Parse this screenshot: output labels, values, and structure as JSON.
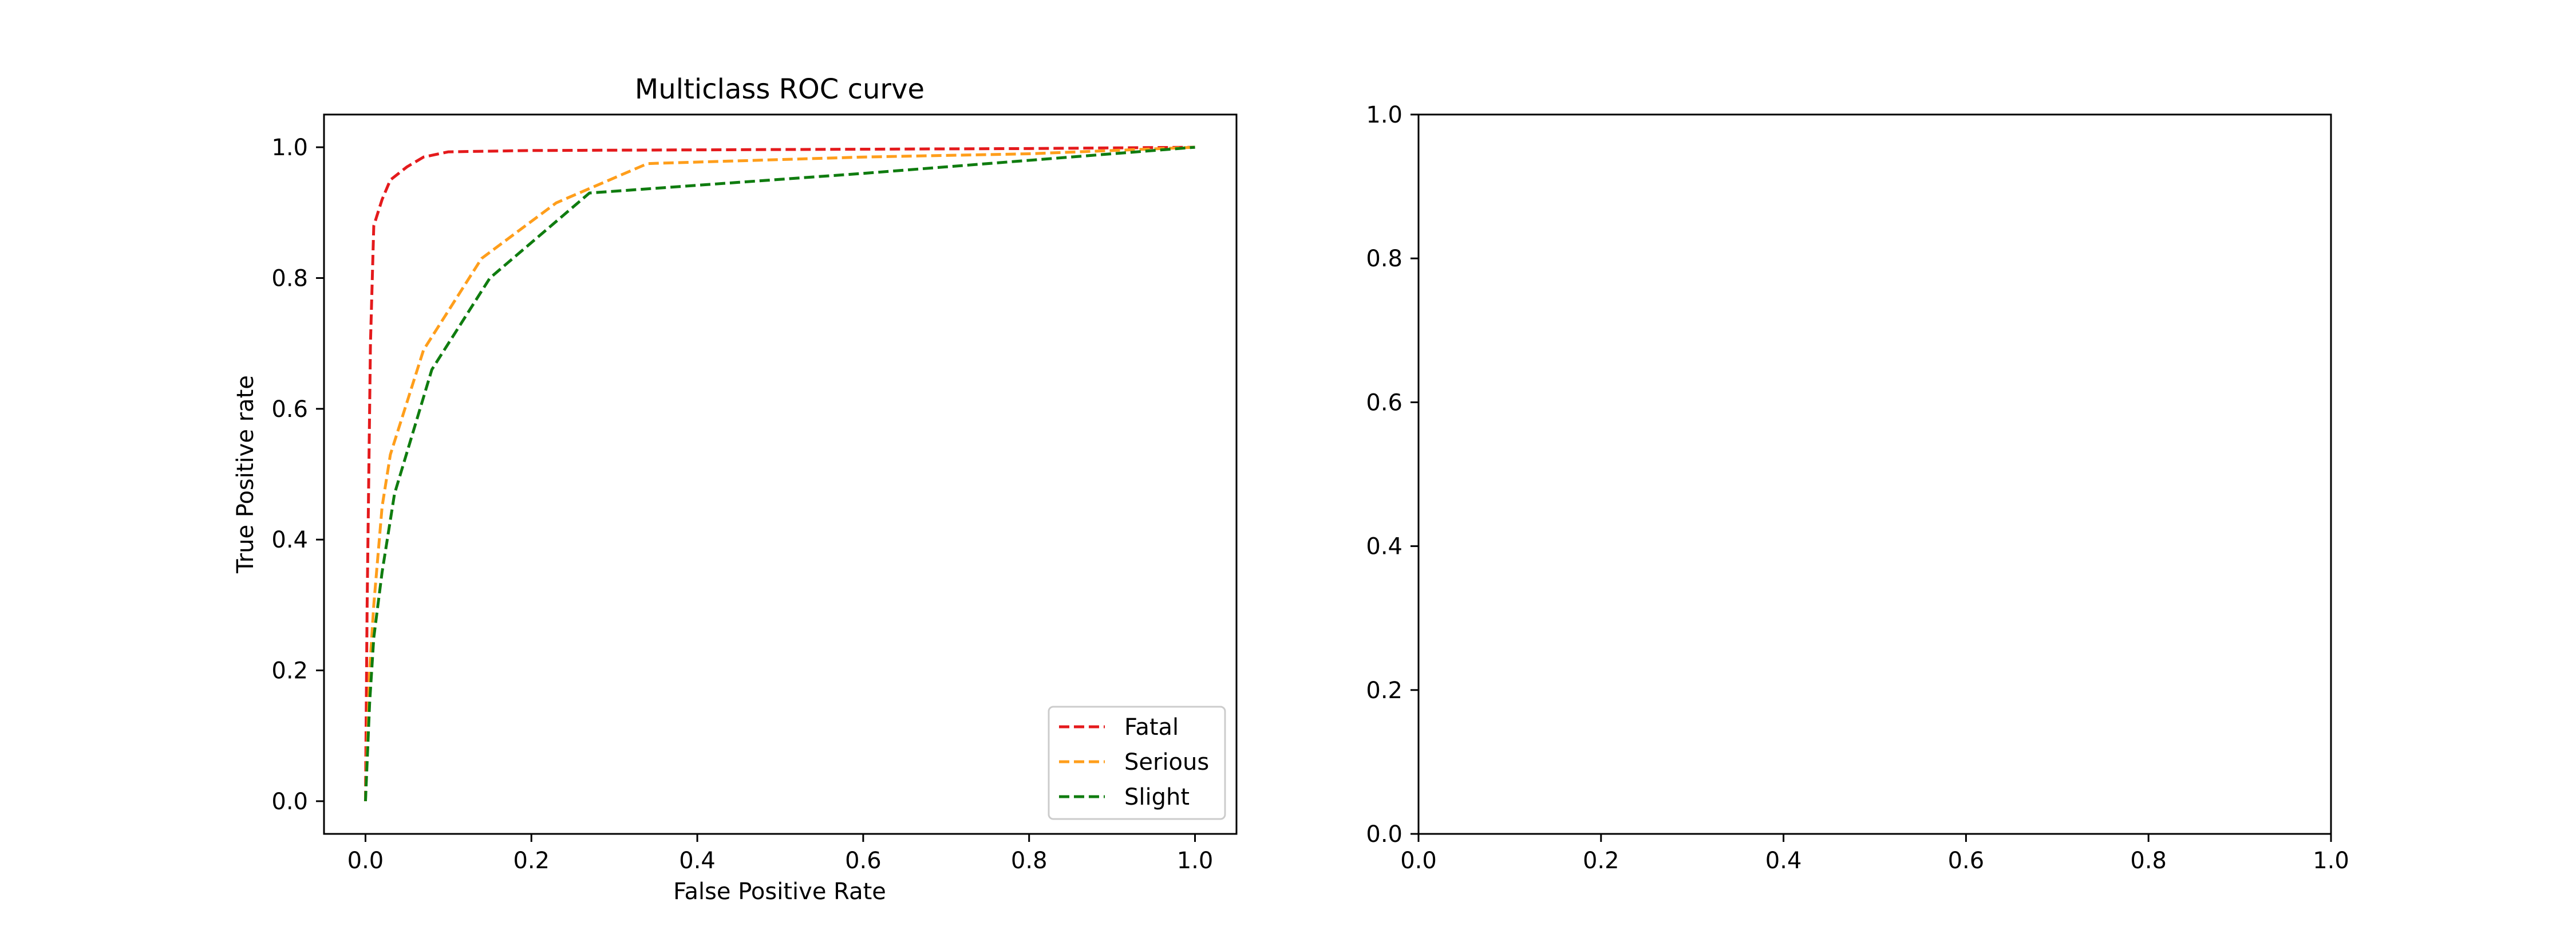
{
  "chart_data": [
    {
      "type": "line",
      "title": "Multiclass ROC curve",
      "xlabel": "False Positive Rate",
      "ylabel": "True Positive rate",
      "xlim": [
        -0.05,
        1.05
      ],
      "ylim": [
        -0.05,
        1.05
      ],
      "xticks": [
        "0.0",
        "0.2",
        "0.4",
        "0.6",
        "0.8",
        "1.0"
      ],
      "yticks": [
        "0.0",
        "0.2",
        "0.4",
        "0.6",
        "0.8",
        "1.0"
      ],
      "grid": false,
      "legend_position": "lower-right",
      "series": [
        {
          "name": "Fatal",
          "color": "#e41a1c",
          "line_style": "dashed",
          "x": [
            0.0,
            0.002,
            0.004,
            0.006,
            0.01,
            0.02,
            0.03,
            0.05,
            0.07,
            0.1,
            0.2,
            0.4,
            0.6,
            0.8,
            1.0
          ],
          "y": [
            0.0,
            0.3,
            0.5,
            0.7,
            0.88,
            0.92,
            0.95,
            0.97,
            0.985,
            0.993,
            0.995,
            0.996,
            0.997,
            0.998,
            1.0
          ]
        },
        {
          "name": "Serious",
          "color": "#ff9e1b",
          "line_style": "dashed",
          "x": [
            0.0,
            0.005,
            0.01,
            0.02,
            0.03,
            0.07,
            0.14,
            0.23,
            0.34,
            0.6,
            0.8,
            1.0
          ],
          "y": [
            0.0,
            0.2,
            0.3,
            0.45,
            0.53,
            0.69,
            0.83,
            0.915,
            0.975,
            0.985,
            0.99,
            1.0
          ]
        },
        {
          "name": "Slight",
          "color": "#0f7c0f",
          "line_style": "dashed",
          "x": [
            0.0,
            0.005,
            0.01,
            0.02,
            0.035,
            0.08,
            0.15,
            0.27,
            0.6,
            0.8,
            1.0
          ],
          "y": [
            0.0,
            0.15,
            0.25,
            0.35,
            0.47,
            0.66,
            0.8,
            0.93,
            0.96,
            0.98,
            1.0
          ]
        }
      ]
    },
    {
      "type": "line",
      "title": "",
      "xlabel": "",
      "ylabel": "",
      "xlim": [
        0.0,
        1.0
      ],
      "ylim": [
        0.0,
        1.0
      ],
      "xticks": [
        "0.0",
        "0.2",
        "0.4",
        "0.6",
        "0.8",
        "1.0"
      ],
      "yticks": [
        "0.0",
        "0.2",
        "0.4",
        "0.6",
        "0.8",
        "1.0"
      ],
      "grid": false,
      "series": []
    }
  ]
}
